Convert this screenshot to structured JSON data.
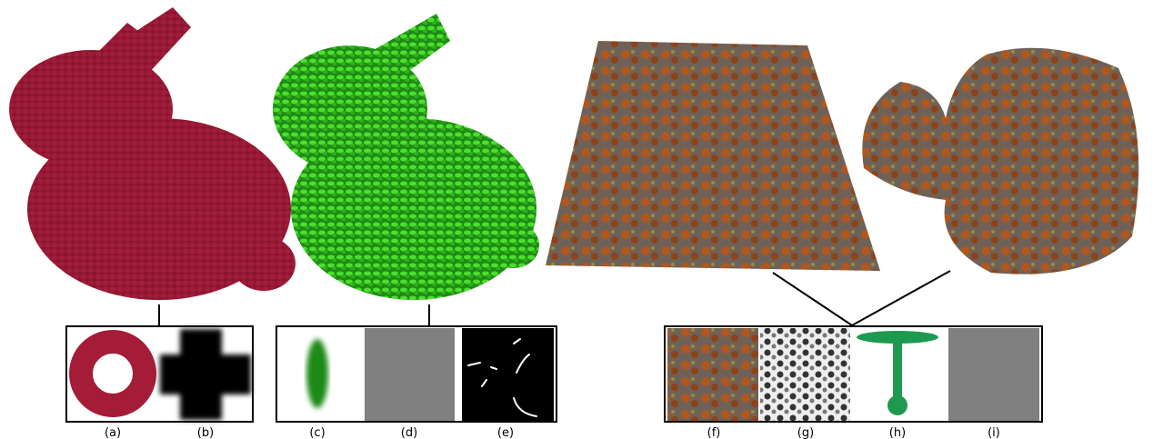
{
  "figure": {
    "labels": [
      "(a)",
      "(b)",
      "(c)",
      "(d)",
      "(e)",
      "(f)",
      "(g)",
      "(h)",
      "(i)"
    ]
  }
}
